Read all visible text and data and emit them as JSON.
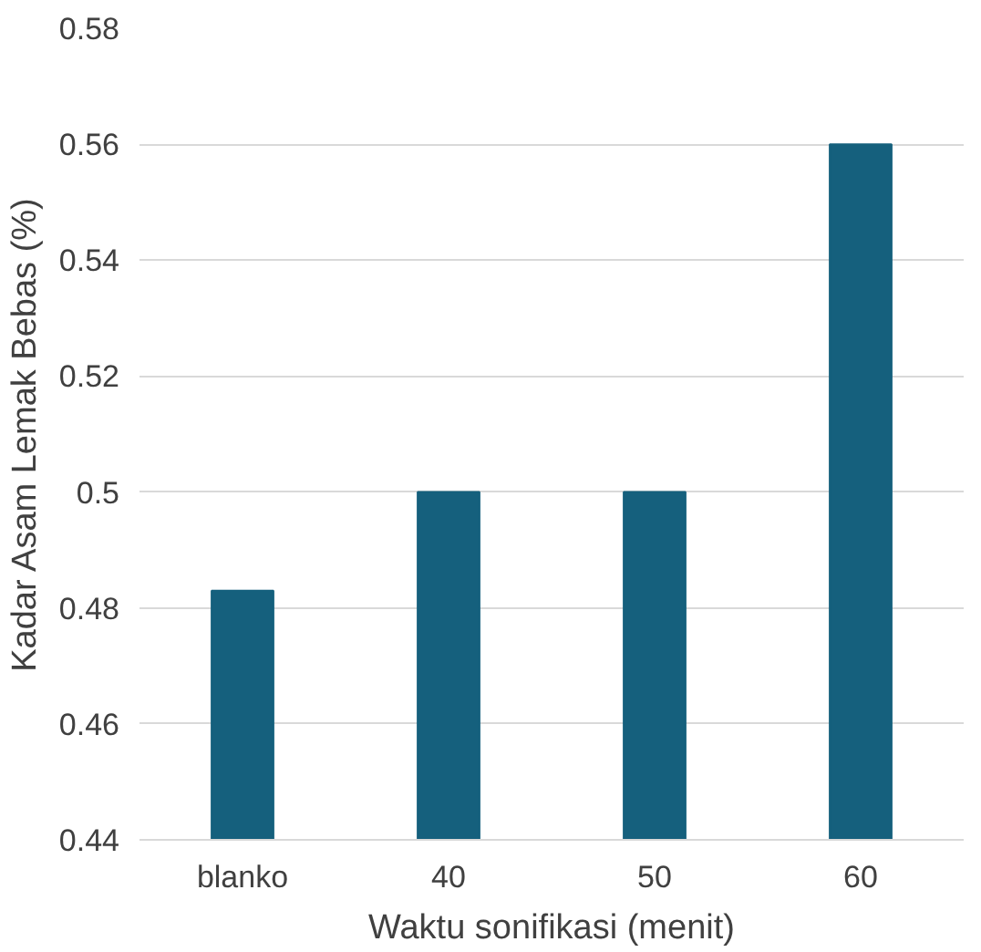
{
  "chart_data": {
    "type": "bar",
    "xlabel": "Waktu sonifikasi (menit)",
    "ylabel": "Kadar Asam Lemak Bebas (%)",
    "categories": [
      "blanko",
      "40",
      "50",
      "60"
    ],
    "values": [
      0.483,
      0.5,
      0.5,
      0.56
    ],
    "color": "#15607d",
    "ylim": [
      0.44,
      0.58
    ],
    "yticks": [
      0.44,
      0.46,
      0.48,
      0.5,
      0.52,
      0.54,
      0.56,
      0.58
    ],
    "grid": "y"
  }
}
